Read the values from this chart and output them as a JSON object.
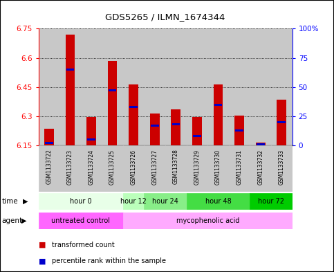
{
  "title": "GDS5265 / ILMN_1674344",
  "samples": [
    "GSM1133722",
    "GSM1133723",
    "GSM1133724",
    "GSM1133725",
    "GSM1133726",
    "GSM1133727",
    "GSM1133728",
    "GSM1133729",
    "GSM1133730",
    "GSM1133731",
    "GSM1133732",
    "GSM1133733"
  ],
  "red_values": [
    6.235,
    6.72,
    6.295,
    6.585,
    6.465,
    6.315,
    6.335,
    6.295,
    6.465,
    6.305,
    6.165,
    6.385
  ],
  "blue_values_pct": [
    2,
    65,
    5,
    47,
    33,
    17,
    18,
    8,
    35,
    13,
    1,
    20
  ],
  "ylim": [
    6.15,
    6.75
  ],
  "yticks": [
    6.15,
    6.3,
    6.45,
    6.6,
    6.75
  ],
  "ytick_labels": [
    "6.15",
    "6.3",
    "6.45",
    "6.6",
    "6.75"
  ],
  "y2_ticks": [
    0,
    25,
    50,
    75,
    100
  ],
  "y2_labels": [
    "0",
    "25",
    "50",
    "75",
    "100%"
  ],
  "bar_base": 6.15,
  "bar_width": 0.45,
  "red_color": "#cc0000",
  "blue_color": "#0000cc",
  "time_groups": [
    {
      "label": "hour 0",
      "cols": [
        0,
        1,
        2,
        3
      ],
      "color": "#e8ffe8"
    },
    {
      "label": "hour 12",
      "cols": [
        4
      ],
      "color": "#bbffbb"
    },
    {
      "label": "hour 24",
      "cols": [
        5,
        6
      ],
      "color": "#88ee88"
    },
    {
      "label": "hour 48",
      "cols": [
        7,
        8,
        9
      ],
      "color": "#44dd44"
    },
    {
      "label": "hour 72",
      "cols": [
        10,
        11
      ],
      "color": "#00cc00"
    }
  ],
  "agent_groups": [
    {
      "label": "untreated control",
      "cols": [
        0,
        1,
        2,
        3
      ],
      "color": "#ff66ff"
    },
    {
      "label": "mycophenolic acid",
      "cols": [
        4,
        5,
        6,
        7,
        8,
        9,
        10,
        11
      ],
      "color": "#ffaaff"
    }
  ],
  "legend_items": [
    {
      "label": "transformed count",
      "color": "#cc0000"
    },
    {
      "label": "percentile rank within the sample",
      "color": "#0000cc"
    }
  ],
  "sample_bg": "#c8c8c8"
}
